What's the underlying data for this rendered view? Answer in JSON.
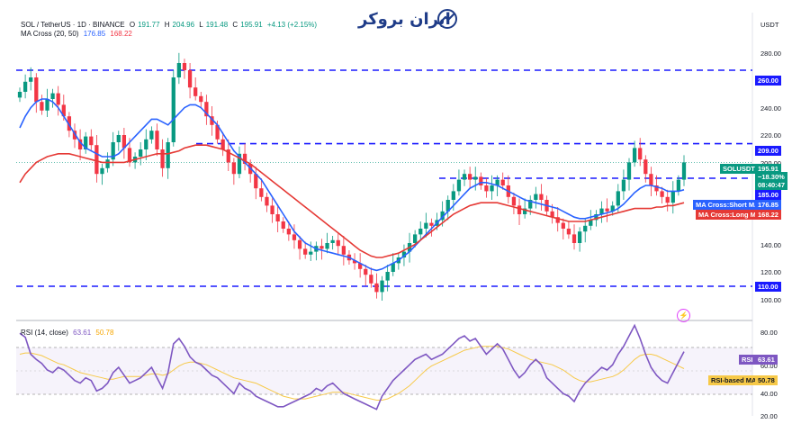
{
  "header": {
    "symbol": "SOL / TetherUS · 1D · BINANCE",
    "open_label": "O",
    "open": "191.77",
    "high_label": "H",
    "high": "204.96",
    "low_label": "L",
    "low": "191.48",
    "close_label": "C",
    "close": "195.91",
    "change": "+4.13 (+2.15%)",
    "ma_title": "MA Cross (20, 50)",
    "ma_short_value": "176.85",
    "ma_long_value": "168.22"
  },
  "logo": {
    "text": "ایران بروکر"
  },
  "price_axis": {
    "currency": "USDT",
    "ticks": [
      "280.00",
      "240.00",
      "220.00",
      "200.00",
      "160.00",
      "140.00",
      "120.00",
      "100.00"
    ]
  },
  "price_tags": {
    "level_260": "260.00",
    "level_209": "209.00",
    "symbol": "SOLUSDT",
    "last_price": "195.91",
    "last_change": "−18.30%",
    "countdown": "08:40:47",
    "level_185": "185.00",
    "ma_short_label": "MA Cross:Short MA",
    "ma_short_value": "176.85",
    "ma_long_label": "MA Cross:Long MA",
    "ma_long_value": "168.22",
    "level_110": "110.00"
  },
  "rsi": {
    "title": "RSI (14, close)",
    "value": "63.61",
    "ma_value": "50.78",
    "tag_label": "RSI",
    "ma_tag_label": "RSI-based MA",
    "ticks": [
      "80.00",
      "60.00",
      "40.00",
      "20.00"
    ]
  },
  "colors": {
    "candle_up": "#089981",
    "candle_down": "#f23645",
    "short_ma": "#2962ff",
    "long_ma": "#e53935",
    "level_line": "#1a1aff",
    "rsi_line": "#7e57c2",
    "rsi_ma": "#f7c948"
  },
  "chart_data": [
    {
      "type": "candlestick",
      "title": "SOL / TetherUS · 1D · BINANCE",
      "ylabel": "USDT",
      "ylim": [
        90,
        300
      ],
      "horizontal_levels": [
        260,
        209,
        185,
        110
      ],
      "last_price": 195.91,
      "series": [
        {
          "name": "SOLUSDT",
          "values": [
            245,
            252,
            255,
            238,
            232,
            240,
            244,
            236,
            228,
            218,
            212,
            205,
            214,
            208,
            188,
            192,
            198,
            210,
            215,
            206,
            196,
            200,
            205,
            212,
            218,
            205,
            192,
            210,
            255,
            265,
            260,
            248,
            242,
            238,
            228,
            222,
            212,
            205,
            196,
            188,
            202,
            195,
            188,
            178,
            172,
            166,
            160,
            155,
            150,
            146,
            142,
            136,
            132,
            134,
            138,
            136,
            140,
            142,
            138,
            132,
            128,
            126,
            122,
            118,
            112,
            106,
            114,
            120,
            126,
            130,
            134,
            140,
            146,
            150,
            154,
            152,
            156,
            162,
            170,
            176,
            184,
            188,
            184,
            186,
            180,
            176,
            180,
            184,
            180,
            172,
            166,
            160,
            164,
            170,
            174,
            170,
            162,
            158,
            154,
            150,
            146,
            140,
            148,
            152,
            156,
            160,
            164,
            162,
            166,
            176,
            184,
            196,
            206,
            198,
            188,
            180,
            176,
            172,
            168,
            176,
            184,
            196
          ]
        },
        {
          "name": "MA Cross:Short MA",
          "values": [
            220,
            228,
            234,
            238,
            240,
            240,
            238,
            234,
            228,
            222,
            216,
            210,
            206,
            204,
            202,
            200,
            200,
            200,
            202,
            206,
            210,
            214,
            218,
            222,
            226,
            226,
            224,
            222,
            226,
            230,
            234,
            236,
            236,
            234,
            230,
            226,
            222,
            216,
            210,
            204,
            200,
            196,
            192,
            188,
            184,
            178,
            172,
            166,
            160,
            154,
            148,
            144,
            140,
            138,
            136,
            135,
            134,
            133,
            132,
            131,
            130,
            128,
            126,
            124,
            122,
            121,
            122,
            124,
            126,
            128,
            131,
            134,
            138,
            142,
            146,
            150,
            154,
            158,
            162,
            166,
            170,
            174,
            178,
            180,
            182,
            182,
            181,
            180,
            178,
            176,
            174,
            172,
            170,
            169,
            168,
            167,
            166,
            165,
            164,
            162,
            160,
            158,
            157,
            157,
            158,
            159,
            160,
            161,
            162,
            164,
            167,
            171,
            175,
            178,
            180,
            180,
            179,
            178,
            176,
            176,
            176,
            177
          ]
        },
        {
          "name": "MA Cross:Long MA",
          "values": [
            182,
            188,
            192,
            196,
            198,
            200,
            201,
            202,
            202,
            202,
            201,
            200,
            199,
            198,
            197,
            196,
            196,
            196,
            196,
            196,
            197,
            198,
            199,
            200,
            201,
            202,
            202,
            202,
            203,
            204,
            206,
            207,
            208,
            208,
            208,
            207,
            206,
            205,
            203,
            201,
            199,
            197,
            195,
            192,
            189,
            186,
            183,
            180,
            177,
            174,
            171,
            168,
            165,
            162,
            159,
            156,
            153,
            150,
            147,
            144,
            141,
            138,
            135,
            133,
            131,
            130,
            130,
            131,
            132,
            133,
            135,
            137,
            139,
            142,
            145,
            148,
            151,
            154,
            157,
            160,
            162,
            164,
            166,
            167,
            168,
            168,
            168,
            168,
            167,
            166,
            165,
            164,
            163,
            162,
            161,
            160,
            159,
            158,
            157,
            156,
            155,
            155,
            155,
            155,
            156,
            157,
            158,
            159,
            160,
            161,
            162,
            163,
            164,
            164,
            164,
            164,
            165,
            165,
            166,
            166,
            167,
            168
          ]
        }
      ]
    },
    {
      "type": "line",
      "title": "RSI (14, close)",
      "ylim": [
        15,
        85
      ],
      "reference_lines": [
        70,
        50,
        30
      ],
      "series": [
        {
          "name": "RSI",
          "values": [
            78,
            75,
            62,
            58,
            55,
            50,
            48,
            52,
            50,
            46,
            42,
            40,
            44,
            42,
            34,
            36,
            40,
            48,
            52,
            46,
            40,
            42,
            44,
            48,
            52,
            44,
            36,
            48,
            70,
            74,
            68,
            60,
            56,
            54,
            50,
            46,
            44,
            40,
            36,
            32,
            40,
            36,
            34,
            30,
            28,
            26,
            24,
            22,
            22,
            24,
            26,
            28,
            30,
            32,
            36,
            34,
            38,
            40,
            36,
            32,
            30,
            28,
            26,
            24,
            22,
            20,
            30,
            36,
            42,
            46,
            50,
            54,
            58,
            60,
            62,
            58,
            60,
            62,
            66,
            70,
            74,
            76,
            72,
            74,
            68,
            62,
            66,
            70,
            66,
            58,
            50,
            44,
            48,
            54,
            58,
            54,
            44,
            40,
            36,
            32,
            30,
            26,
            34,
            40,
            44,
            48,
            52,
            50,
            54,
            62,
            68,
            76,
            84,
            74,
            62,
            52,
            46,
            42,
            40,
            48,
            56,
            64
          ]
        },
        {
          "name": "RSI-based MA",
          "values": [
            62,
            63,
            63,
            62,
            61,
            59,
            57,
            55,
            54,
            52,
            50,
            48,
            47,
            46,
            45,
            44,
            43,
            43,
            44,
            45,
            45,
            45,
            45,
            46,
            47,
            47,
            46,
            47,
            50,
            53,
            55,
            56,
            56,
            55,
            54,
            52,
            50,
            48,
            46,
            44,
            43,
            42,
            41,
            40,
            38,
            36,
            34,
            32,
            30,
            29,
            28,
            28,
            28,
            29,
            30,
            31,
            32,
            33,
            33,
            33,
            32,
            31,
            30,
            29,
            28,
            27,
            27,
            28,
            30,
            32,
            35,
            38,
            42,
            46,
            50,
            53,
            55,
            57,
            59,
            61,
            63,
            65,
            66,
            67,
            68,
            68,
            68,
            68,
            67,
            66,
            64,
            62,
            60,
            58,
            57,
            56,
            55,
            54,
            52,
            50,
            47,
            44,
            42,
            41,
            41,
            42,
            43,
            44,
            45,
            47,
            50,
            54,
            58,
            61,
            62,
            62,
            61,
            59,
            57,
            55,
            53,
            51
          ]
        }
      ]
    }
  ]
}
